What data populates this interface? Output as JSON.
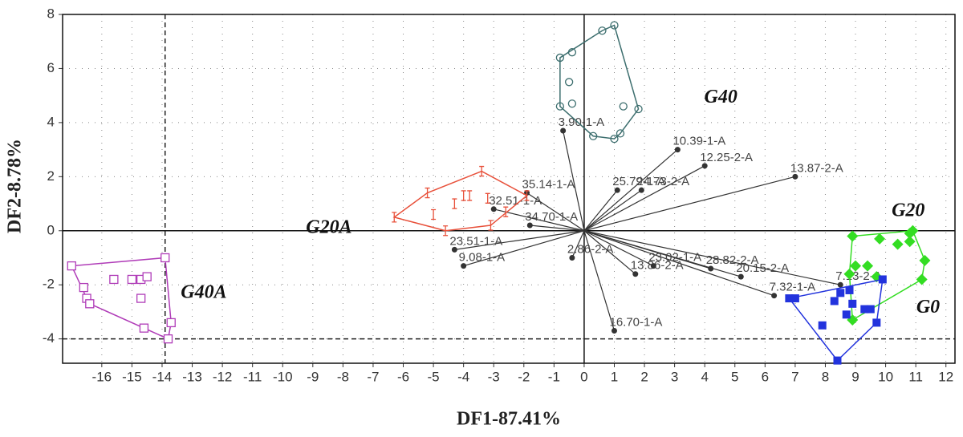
{
  "chart_data": {
    "type": "scatter",
    "xlabel": "DF1-87.41%",
    "ylabel": "DF2-8.78%",
    "xlim": [
      -17.3,
      12.3
    ],
    "ylim": [
      -4.9,
      8
    ],
    "xticks": [
      -16,
      -15,
      -14,
      -13,
      -12,
      -11,
      -10,
      -9,
      -8,
      -7,
      -6,
      -5,
      -4,
      -3,
      -2,
      -1,
      0,
      1,
      2,
      3,
      4,
      5,
      6,
      7,
      8,
      9,
      10,
      11,
      12
    ],
    "yticks": [
      -4,
      -2,
      0,
      2,
      4,
      6,
      8
    ],
    "grid": true,
    "reference_lines": {
      "x": -13.9,
      "y": -4
    },
    "series": [
      {
        "name": "G40",
        "color": "#3c6e6e",
        "marker": "open-circle",
        "x": [
          -0.8,
          -0.4,
          0.6,
          1.0,
          1.8,
          1.3,
          1.2,
          -0.8,
          -0.4,
          1.0,
          0.3,
          -0.5
        ],
        "y": [
          6.4,
          6.6,
          7.4,
          7.6,
          4.5,
          4.6,
          3.6,
          4.6,
          4.7,
          3.4,
          3.5,
          5.5
        ]
      },
      {
        "name": "G20A",
        "color": "#e8503a",
        "marker": "bar",
        "x": [
          -6.3,
          -3.4,
          -1.9,
          -2.6,
          -3.1,
          -5.2,
          -4.0,
          -4.3,
          -3.8,
          -3.2,
          -5.0,
          -4.6
        ],
        "y": [
          0.5,
          2.2,
          1.3,
          0.7,
          0.2,
          1.4,
          1.3,
          1.0,
          1.3,
          1.2,
          0.6,
          0.0
        ]
      },
      {
        "name": "G40A",
        "color": "#b03cb8",
        "marker": "open-square",
        "x": [
          -17.0,
          -13.9,
          -16.6,
          -16.5,
          -16.4,
          -14.6,
          -13.7,
          -13.8,
          -15.6,
          -15.0,
          -14.7,
          -14.5,
          -14.7
        ],
        "y": [
          -1.3,
          -1.0,
          -2.1,
          -2.5,
          -2.7,
          -3.6,
          -3.4,
          -4.0,
          -1.8,
          -1.8,
          -1.8,
          -1.7,
          -2.5
        ]
      },
      {
        "name": "G20",
        "color": "#33dd22",
        "marker": "diamond",
        "x": [
          8.9,
          9.8,
          10.8,
          10.9,
          11.3,
          11.2,
          8.9,
          9.7,
          9.4,
          9.0,
          10.4,
          10.8,
          8.8
        ],
        "y": [
          -0.2,
          -0.3,
          -0.1,
          0.0,
          -1.1,
          -1.8,
          -3.3,
          -1.7,
          -1.3,
          -1.3,
          -0.5,
          -0.4,
          -1.6
        ]
      },
      {
        "name": "G0",
        "color": "#2233dd",
        "marker": "square",
        "x": [
          6.8,
          7.0,
          8.4,
          9.7,
          9.9,
          8.5,
          8.3,
          8.9,
          9.3,
          9.5,
          7.9,
          8.7,
          8.8
        ],
        "y": [
          -2.5,
          -2.5,
          -4.8,
          -3.4,
          -1.8,
          -2.3,
          -2.6,
          -2.7,
          -2.9,
          -2.9,
          -3.5,
          -3.1,
          -2.2
        ]
      }
    ],
    "vectors": {
      "color": "#333333",
      "labels": [
        "3.90-1-A",
        "10.39-1-A",
        "12.25-2-A",
        "13.87-2-A",
        "25.79-1-A",
        "24.73-2-A",
        "35.14-1-A",
        "32.51-1-A",
        "34.70-1-A",
        "23.51-1-A",
        "9.08-1-A",
        "16.70-1-A",
        "28.82-2-A",
        "20.15-2-A",
        "7.32-1-A",
        "7.13-2-A",
        "2.86-2-A",
        "13.86-2-A",
        "23.02-1-A"
      ],
      "x": [
        -0.7,
        3.1,
        4.0,
        7.0,
        1.1,
        1.9,
        -1.9,
        -3.0,
        -1.8,
        -4.3,
        -4.0,
        1.0,
        4.2,
        5.2,
        6.3,
        8.5,
        -0.4,
        1.7,
        2.3
      ],
      "y": [
        3.7,
        3.0,
        2.4,
        2.0,
        1.5,
        1.5,
        1.4,
        0.8,
        0.2,
        -0.7,
        -1.3,
        -3.7,
        -1.4,
        -1.7,
        -2.4,
        -2.0,
        -1.0,
        -1.6,
        -1.3
      ]
    }
  }
}
